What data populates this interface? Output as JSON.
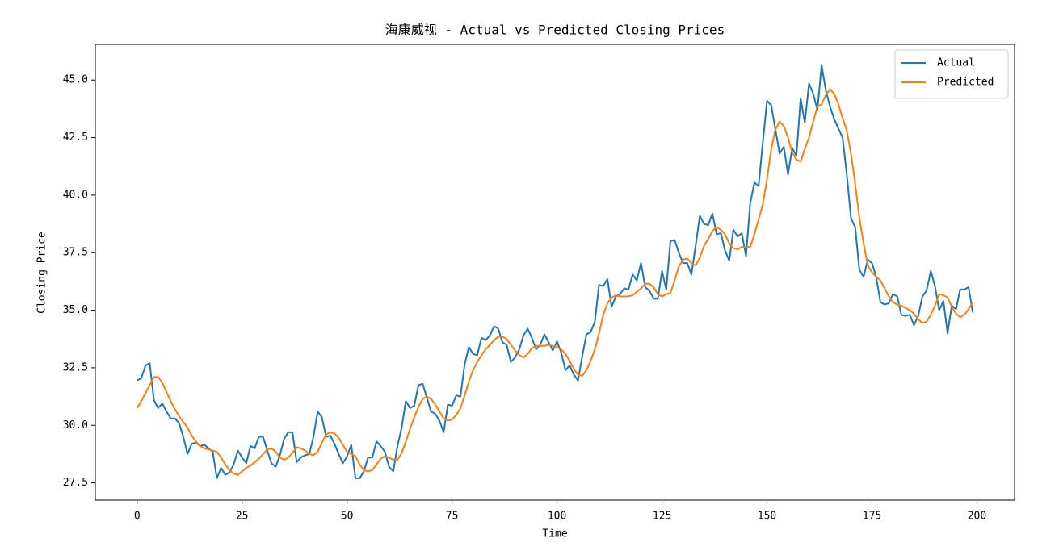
{
  "chart_data": {
    "type": "line",
    "title": "海康威视 - Actual vs Predicted Closing Prices",
    "xlabel": "Time",
    "ylabel": "Closing Price",
    "x": [
      0,
      1,
      2,
      3,
      4,
      5,
      6,
      7,
      8,
      9,
      10,
      11,
      12,
      13,
      14,
      15,
      16,
      17,
      18,
      19,
      20,
      21,
      22,
      23,
      24,
      25,
      26,
      27,
      28,
      29,
      30,
      31,
      32,
      33,
      34,
      35,
      36,
      37,
      38,
      39,
      40,
      41,
      42,
      43,
      44,
      45,
      46,
      47,
      48,
      49,
      50,
      51,
      52,
      53,
      54,
      55,
      56,
      57,
      58,
      59,
      60,
      61,
      62,
      63,
      64,
      65,
      66,
      67,
      68,
      69,
      70,
      71,
      72,
      73,
      74,
      75,
      76,
      77,
      78,
      79,
      80,
      81,
      82,
      83,
      84,
      85,
      86,
      87,
      88,
      89,
      90,
      91,
      92,
      93,
      94,
      95,
      96,
      97,
      98,
      99,
      100,
      101,
      102,
      103,
      104,
      105,
      106,
      107,
      108,
      109,
      110,
      111,
      112,
      113,
      114,
      115,
      116,
      117,
      118,
      119,
      120,
      121,
      122,
      123,
      124,
      125,
      126,
      127,
      128,
      129,
      130,
      131,
      132,
      133,
      134,
      135,
      136,
      137,
      138,
      139,
      140,
      141,
      142,
      143,
      144,
      145,
      146,
      147,
      148,
      149,
      150,
      151,
      152,
      153,
      154,
      155,
      156,
      157,
      158,
      159,
      160,
      161,
      162,
      163,
      164,
      165,
      166,
      167,
      168,
      169,
      170,
      171,
      172,
      173,
      174,
      175,
      176,
      177,
      178,
      179,
      180,
      181,
      182,
      183,
      184,
      185,
      186,
      187,
      188,
      189,
      190,
      191,
      192,
      193,
      194,
      195,
      196,
      197,
      198,
      199
    ],
    "series": [
      {
        "name": "Actual",
        "color": "#1f77b4",
        "values": [
          31.95,
          32.05,
          32.6,
          32.7,
          31.1,
          30.75,
          30.95,
          30.6,
          30.3,
          30.3,
          30.1,
          29.5,
          28.75,
          29.2,
          29.25,
          29.1,
          29.15,
          29.0,
          28.85,
          27.7,
          28.15,
          27.85,
          27.95,
          28.3,
          28.9,
          28.6,
          28.35,
          29.1,
          29.0,
          29.5,
          29.5,
          28.9,
          28.35,
          28.2,
          28.7,
          29.4,
          29.7,
          29.7,
          28.4,
          28.6,
          28.7,
          28.75,
          29.5,
          30.6,
          30.35,
          29.5,
          29.55,
          29.2,
          28.75,
          28.35,
          28.65,
          29.15,
          27.7,
          27.7,
          28.0,
          28.6,
          28.6,
          29.3,
          29.1,
          28.85,
          28.2,
          28.0,
          29.1,
          29.9,
          31.05,
          30.75,
          30.85,
          31.75,
          31.8,
          31.2,
          30.6,
          30.5,
          30.2,
          29.7,
          30.9,
          30.85,
          31.3,
          31.25,
          32.65,
          33.4,
          33.1,
          33.05,
          33.8,
          33.7,
          33.9,
          34.3,
          34.2,
          33.6,
          33.5,
          32.75,
          32.95,
          33.3,
          33.9,
          34.2,
          33.8,
          33.3,
          33.5,
          33.95,
          33.6,
          33.25,
          33.65,
          33.15,
          32.4,
          32.6,
          32.2,
          31.95,
          33.0,
          33.95,
          34.05,
          34.5,
          36.1,
          36.05,
          36.35,
          35.15,
          35.6,
          35.7,
          35.95,
          35.9,
          36.55,
          36.3,
          37.05,
          36.0,
          35.85,
          35.5,
          35.5,
          36.7,
          35.9,
          38.0,
          38.05,
          37.5,
          37.05,
          37.05,
          36.55,
          37.8,
          39.1,
          38.75,
          38.7,
          39.2,
          38.3,
          38.35,
          37.6,
          37.15,
          38.5,
          38.2,
          38.35,
          37.35,
          39.65,
          40.55,
          40.4,
          42.3,
          44.1,
          43.9,
          42.85,
          41.8,
          42.1,
          40.9,
          42.05,
          41.7,
          44.2,
          43.15,
          44.85,
          44.4,
          43.7,
          45.65,
          44.55,
          43.85,
          43.3,
          42.9,
          42.5,
          40.9,
          39.0,
          38.6,
          36.75,
          36.45,
          37.2,
          37.05,
          36.45,
          35.35,
          35.25,
          35.3,
          35.7,
          35.6,
          34.8,
          34.75,
          34.8,
          34.35,
          34.75,
          35.6,
          35.85,
          36.7,
          36.05,
          35.0,
          35.4,
          34.0,
          35.2,
          35.05,
          35.9,
          35.9,
          36.0,
          34.9
        ]
      },
      {
        "name": "Predicted",
        "color": "#ff7f0e",
        "values": [
          30.75,
          31.05,
          31.4,
          31.75,
          32.1,
          32.1,
          31.85,
          31.45,
          31.05,
          30.7,
          30.4,
          30.15,
          29.9,
          29.55,
          29.3,
          29.1,
          29.0,
          28.95,
          28.9,
          28.85,
          28.6,
          28.3,
          28.05,
          27.9,
          27.85,
          28.0,
          28.15,
          28.25,
          28.4,
          28.55,
          28.75,
          28.95,
          29.0,
          28.85,
          28.6,
          28.5,
          28.6,
          28.8,
          29.05,
          29.0,
          28.9,
          28.75,
          28.7,
          28.85,
          29.25,
          29.6,
          29.7,
          29.65,
          29.45,
          29.15,
          28.85,
          28.75,
          28.65,
          28.3,
          28.05,
          28.0,
          28.05,
          28.3,
          28.55,
          28.65,
          28.6,
          28.5,
          28.5,
          28.8,
          29.3,
          29.85,
          30.35,
          30.8,
          31.15,
          31.25,
          31.15,
          30.9,
          30.6,
          30.3,
          30.2,
          30.25,
          30.45,
          30.75,
          31.3,
          31.9,
          32.4,
          32.75,
          33.05,
          33.3,
          33.5,
          33.7,
          33.85,
          33.85,
          33.75,
          33.5,
          33.25,
          33.05,
          32.95,
          33.1,
          33.35,
          33.45,
          33.45,
          33.45,
          33.5,
          33.45,
          33.4,
          33.3,
          33.1,
          32.8,
          32.45,
          32.2,
          32.15,
          32.4,
          32.8,
          33.3,
          34.0,
          34.8,
          35.3,
          35.55,
          35.65,
          35.6,
          35.6,
          35.6,
          35.65,
          35.8,
          35.95,
          36.15,
          36.15,
          36.0,
          35.7,
          35.6,
          35.7,
          35.75,
          36.3,
          36.9,
          37.2,
          37.25,
          37.05,
          36.95,
          37.3,
          37.8,
          38.1,
          38.45,
          38.6,
          38.5,
          38.3,
          37.9,
          37.7,
          37.65,
          37.75,
          37.75,
          37.75,
          38.3,
          38.95,
          39.6,
          40.7,
          42.0,
          42.85,
          43.2,
          43.0,
          42.5,
          41.85,
          41.55,
          41.45,
          42.0,
          42.5,
          43.2,
          43.85,
          43.95,
          44.35,
          44.6,
          44.4,
          43.95,
          43.35,
          42.8,
          41.8,
          40.5,
          39.0,
          37.9,
          36.95,
          36.65,
          36.45,
          36.3,
          35.95,
          35.6,
          35.35,
          35.25,
          35.2,
          35.1,
          35.0,
          34.85,
          34.6,
          34.45,
          34.5,
          34.8,
          35.2,
          35.7,
          35.65,
          35.55,
          35.15,
          34.85,
          34.7,
          34.8,
          35.05,
          35.35
        ]
      }
    ],
    "xlim": [
      -9.95,
      208.95
    ],
    "xticks": [
      0,
      25,
      50,
      75,
      100,
      125,
      150,
      175,
      200
    ],
    "ylim": [
      26.75,
      46.55
    ],
    "yticks": [
      27.5,
      {
        "value": 30,
        "label": "30.0"
      },
      32.5,
      {
        "value": 35,
        "label": "35.0"
      },
      37.5,
      {
        "value": 40,
        "label": "40.0"
      },
      42.5,
      {
        "value": 45,
        "label": "45.0"
      }
    ],
    "grid": false,
    "legend": "upper right"
  }
}
